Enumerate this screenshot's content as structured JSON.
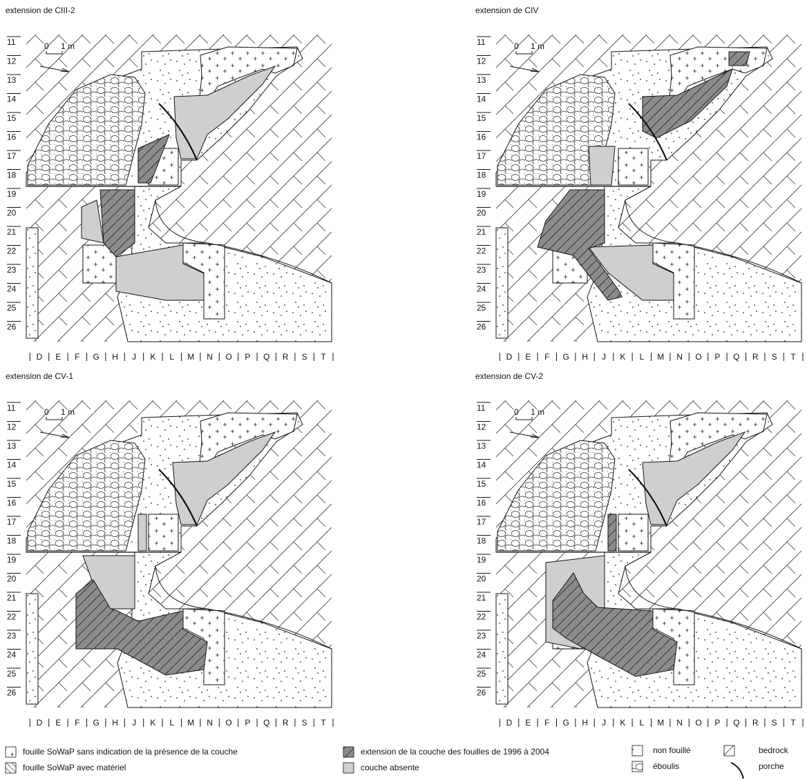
{
  "panels": [
    {
      "title": "extension de CIII-2"
    },
    {
      "title": "extension de CIV"
    },
    {
      "title": "extension de CV-1"
    },
    {
      "title": "extension de CV-2"
    }
  ],
  "rows": [
    "11",
    "12",
    "13",
    "14",
    "15",
    "16",
    "17",
    "18",
    "19",
    "20",
    "21",
    "22",
    "23",
    "24",
    "25",
    "26"
  ],
  "columns": [
    "D",
    "E",
    "F",
    "G",
    "H",
    "J",
    "K",
    "L",
    "M",
    "N",
    "O",
    "P",
    "Q",
    "R",
    "S",
    "T"
  ],
  "scale": {
    "start": "0",
    "end": "1 m"
  },
  "legend": [
    {
      "label": "fouille SoWaP sans indication de la présence de la couche"
    },
    {
      "label": "fouille SoWaP avec matériel"
    },
    {
      "label": "extension de la couche des fouilles de 1996 à 2004"
    },
    {
      "label": "couche absente"
    },
    {
      "label": "non fouillé"
    },
    {
      "label": "éboulis"
    },
    {
      "label": "bedrock"
    },
    {
      "label": "porche"
    }
  ]
}
